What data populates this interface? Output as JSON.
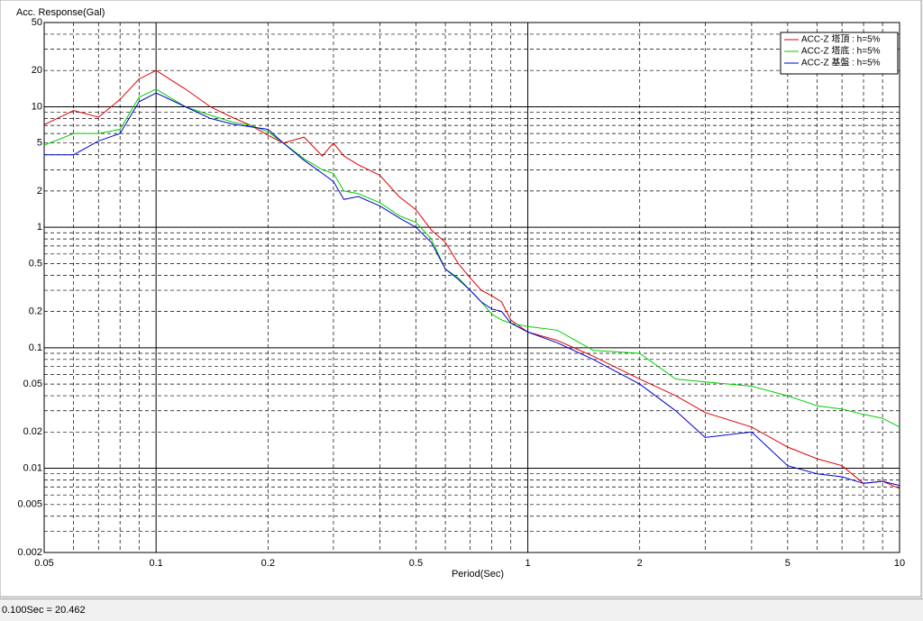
{
  "chart_data": {
    "type": "line",
    "ylabel": "Acc. Response(Gal)",
    "xlabel": "Period(Sec)",
    "xscale": "log",
    "yscale": "log",
    "xlim": [
      0.05,
      10
    ],
    "ylim": [
      0.002,
      50
    ],
    "xticks": [
      0.05,
      0.1,
      0.2,
      0.5,
      1,
      2,
      5,
      10
    ],
    "yticks": [
      50,
      20,
      10,
      5,
      2,
      1,
      0.5,
      0.2,
      0.1,
      0.05,
      0.02,
      0.01,
      0.005,
      0.002
    ],
    "xgrid_major": [
      0.1,
      1
    ],
    "xgrid_minor": [
      0.06,
      0.07,
      0.08,
      0.09,
      0.2,
      0.3,
      0.4,
      0.5,
      0.6,
      0.7,
      0.8,
      0.9,
      2,
      3,
      4,
      5,
      6,
      7,
      8,
      9
    ],
    "ygrid_major": [
      0.01,
      0.1,
      1,
      10
    ],
    "ygrid_minor": [
      0.003,
      0.004,
      0.005,
      0.006,
      0.007,
      0.008,
      0.009,
      0.02,
      0.03,
      0.04,
      0.05,
      0.06,
      0.07,
      0.08,
      0.09,
      0.2,
      0.3,
      0.4,
      0.5,
      0.6,
      0.7,
      0.8,
      0.9,
      2,
      3,
      4,
      5,
      6,
      7,
      8,
      9,
      20,
      30,
      40
    ],
    "legend": "upper right",
    "x": [
      0.05,
      0.06,
      0.07,
      0.08,
      0.09,
      0.1,
      0.12,
      0.14,
      0.16,
      0.18,
      0.2,
      0.22,
      0.25,
      0.28,
      0.3,
      0.32,
      0.35,
      0.4,
      0.45,
      0.5,
      0.55,
      0.6,
      0.65,
      0.7,
      0.75,
      0.8,
      0.85,
      0.9,
      1,
      1.2,
      1.5,
      2,
      2.5,
      3,
      4,
      5,
      6,
      7,
      8,
      9,
      10
    ],
    "series": [
      {
        "name": "ACC-Z 塔頂 : h=5%",
        "color": "#e00000",
        "values": [
          7.1,
          9.3,
          8.2,
          11.5,
          17,
          20,
          14,
          10,
          8.2,
          7,
          5.8,
          5.0,
          5.6,
          3.9,
          5.0,
          3.9,
          3.3,
          2.7,
          1.8,
          1.4,
          0.95,
          0.75,
          0.5,
          0.38,
          0.3,
          0.27,
          0.24,
          0.17,
          0.135,
          0.115,
          0.085,
          0.055,
          0.04,
          0.029,
          0.022,
          0.015,
          0.012,
          0.0105,
          0.0075,
          0.0078,
          0.0068
        ]
      },
      {
        "name": "ACC-Z 塔底 : h=5%",
        "color": "#00d000",
        "values": [
          4.8,
          6,
          6,
          6.5,
          12,
          14,
          10,
          8.5,
          7.5,
          7,
          6.2,
          5,
          3.7,
          3,
          2.8,
          2,
          1.9,
          1.6,
          1.25,
          1.1,
          0.8,
          0.45,
          0.38,
          0.3,
          0.24,
          0.19,
          0.17,
          0.16,
          0.15,
          0.14,
          0.095,
          0.09,
          0.055,
          0.052,
          0.048,
          0.04,
          0.033,
          0.031,
          0.028,
          0.026,
          0.022
        ]
      },
      {
        "name": "ACC-Z 基盤 : h=5%",
        "color": "#0000d0",
        "values": [
          4,
          4,
          5.2,
          6,
          11,
          13,
          10,
          8,
          7.2,
          6.8,
          6.5,
          5,
          3.6,
          2.8,
          2.4,
          1.7,
          1.8,
          1.5,
          1.2,
          1.0,
          0.75,
          0.45,
          0.37,
          0.3,
          0.24,
          0.21,
          0.2,
          0.16,
          0.135,
          0.11,
          0.08,
          0.05,
          0.03,
          0.018,
          0.02,
          0.0105,
          0.009,
          0.0085,
          0.0075,
          0.0078,
          0.0072
        ]
      }
    ]
  },
  "status_bar": {
    "text": "0.100Sec = 20.462"
  }
}
